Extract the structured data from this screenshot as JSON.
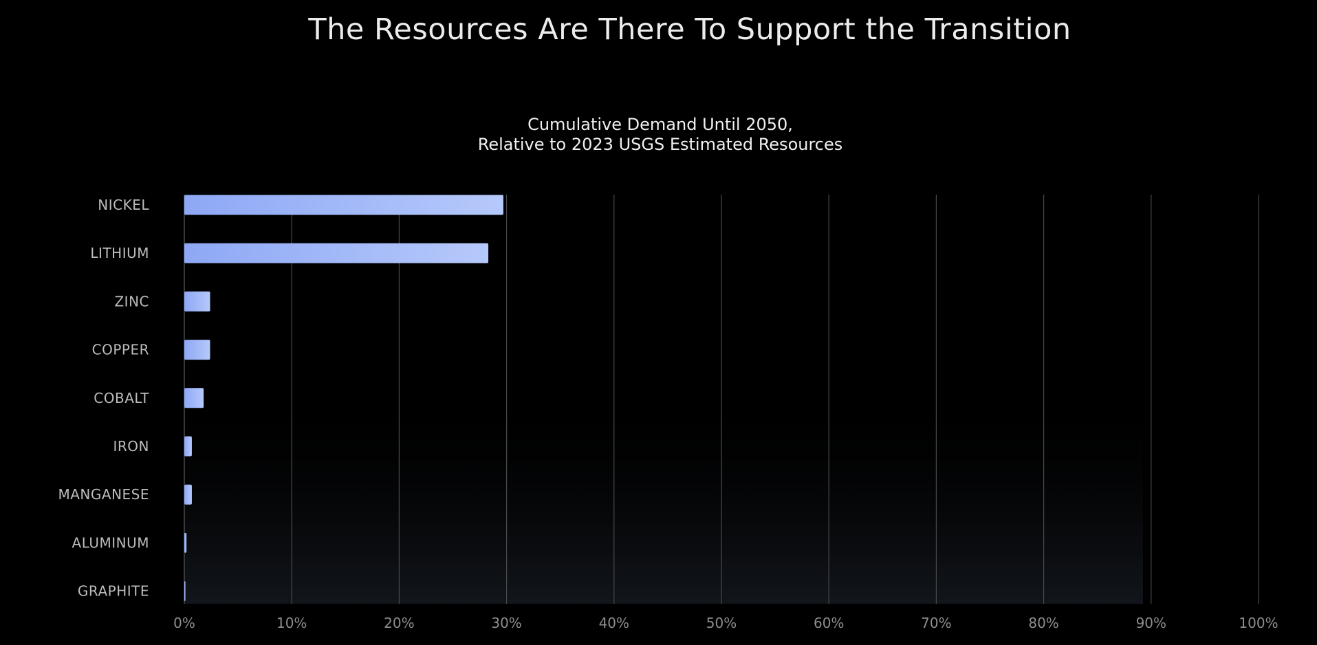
{
  "page": {
    "title": "The Resources Are There To Support the Transition"
  },
  "chart_data": {
    "type": "bar",
    "orientation": "horizontal",
    "title_lines": [
      "Cumulative Demand Until 2050,",
      "Relative to 2023 USGS Estimated Resources"
    ],
    "categories": [
      "NICKEL",
      "LITHIUM",
      "ZINC",
      "COPPER",
      "COBALT",
      "IRON",
      "MANGANESE",
      "ALUMINUM",
      "GRAPHITE"
    ],
    "values": [
      29.7,
      28.3,
      2.4,
      2.4,
      1.8,
      0.7,
      0.7,
      0.2,
      0.1
    ],
    "xlim": [
      0,
      100
    ],
    "x_ticks": [
      0,
      10,
      20,
      30,
      40,
      50,
      60,
      70,
      80,
      90,
      100
    ],
    "x_tick_labels": [
      "0%",
      "10%",
      "20%",
      "30%",
      "40%",
      "50%",
      "60%",
      "70%",
      "80%",
      "90%",
      "100%"
    ],
    "grid": "vertical",
    "legend": "none",
    "colors": {
      "bar_start": "#8ea8f5",
      "bar_end": "#b6c9fb",
      "grid": "#4a4a4a",
      "background": "#000000"
    }
  }
}
